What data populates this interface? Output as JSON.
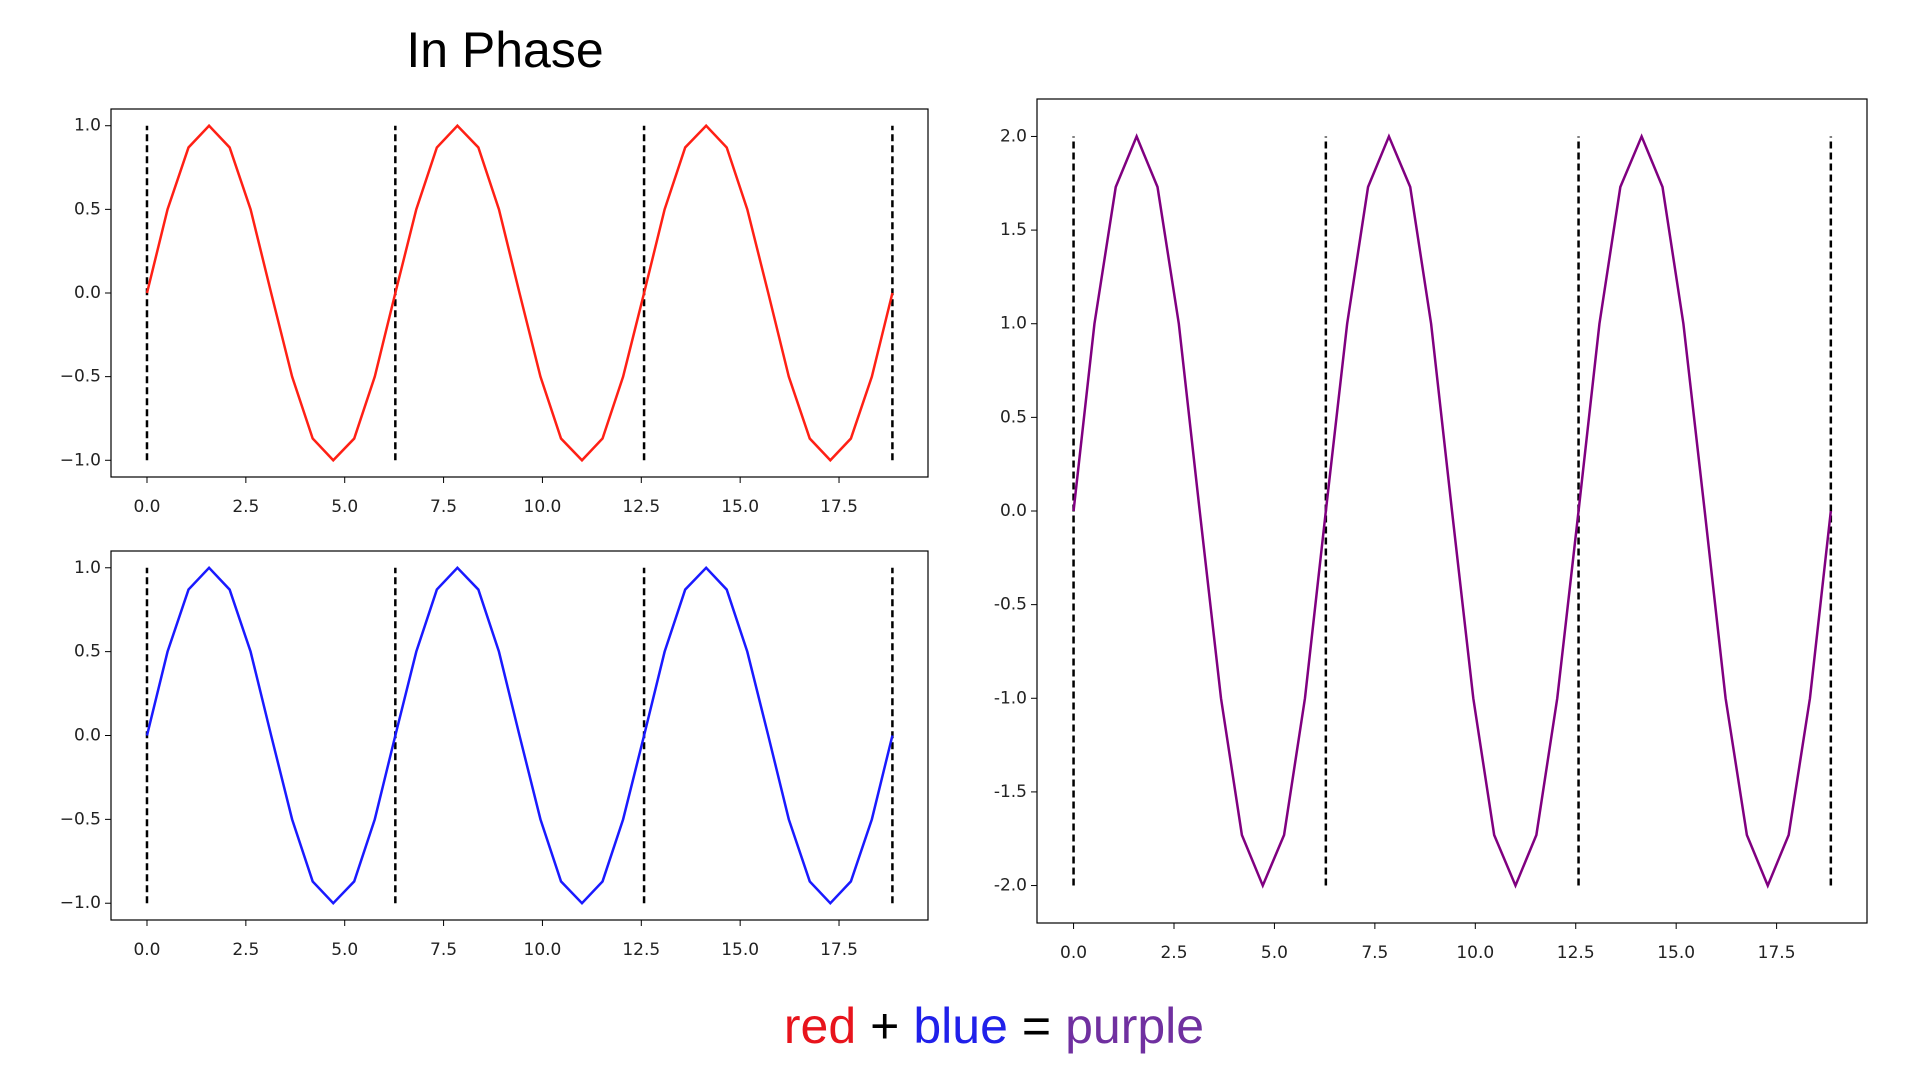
{
  "title": "In Phase",
  "caption": [
    {
      "text": "red",
      "color": "#e8141c"
    },
    {
      "text": "+",
      "color": "#000000"
    },
    {
      "text": "blue",
      "color": "#2020ea"
    },
    {
      "text": "=",
      "color": "#000000"
    },
    {
      "text": "purple",
      "color": "#7030a0"
    }
  ],
  "chart_data": [
    {
      "type": "line",
      "color": "#ff2015",
      "x": [
        0,
        0.52,
        1.05,
        1.57,
        2.09,
        2.62,
        3.14,
        3.67,
        4.19,
        4.71,
        5.24,
        5.76,
        6.28,
        6.81,
        7.33,
        7.85,
        8.38,
        8.9,
        9.42,
        9.95,
        10.47,
        11.0,
        11.52,
        12.04,
        12.57,
        13.09,
        13.61,
        14.14,
        14.66,
        15.18,
        15.71,
        16.23,
        16.76,
        17.28,
        17.8,
        18.33,
        18.85
      ],
      "values": [
        0,
        0.5,
        0.87,
        1,
        0.87,
        0.5,
        0,
        -0.5,
        -0.87,
        -1,
        -0.87,
        -0.5,
        0,
        0.5,
        0.87,
        1,
        0.87,
        0.5,
        0,
        -0.5,
        -0.87,
        -1,
        -0.87,
        -0.5,
        0,
        0.5,
        0.87,
        1,
        0.87,
        0.5,
        0,
        -0.5,
        -0.87,
        -1,
        -0.87,
        -0.5,
        0
      ],
      "vlines": {
        "x": [
          0,
          6.28,
          12.57,
          18.85
        ],
        "ymin": -1,
        "ymax": 1,
        "color": "#000000"
      },
      "xlim": [
        -0.91,
        19.75
      ],
      "ylim": [
        -1.1,
        1.1
      ],
      "xticks": [
        {
          "value": 0,
          "label": "0.0"
        },
        2.5,
        {
          "value": 5,
          "label": "5.0"
        },
        7.5,
        {
          "value": 10,
          "label": "10.0"
        },
        12.5,
        {
          "value": 15,
          "label": "15.0"
        },
        17.5
      ],
      "yticks": [
        {
          "value": -1,
          "label": "−1.0"
        },
        {
          "value": -0.5,
          "label": "−0.5"
        },
        {
          "value": 0,
          "label": "0.0"
        },
        0.5,
        {
          "value": 1,
          "label": "1.0"
        }
      ]
    },
    {
      "type": "line",
      "color": "#1a1aff",
      "x": [
        0,
        0.52,
        1.05,
        1.57,
        2.09,
        2.62,
        3.14,
        3.67,
        4.19,
        4.71,
        5.24,
        5.76,
        6.28,
        6.81,
        7.33,
        7.85,
        8.38,
        8.9,
        9.42,
        9.95,
        10.47,
        11.0,
        11.52,
        12.04,
        12.57,
        13.09,
        13.61,
        14.14,
        14.66,
        15.18,
        15.71,
        16.23,
        16.76,
        17.28,
        17.8,
        18.33,
        18.85
      ],
      "values": [
        0,
        0.5,
        0.87,
        1,
        0.87,
        0.5,
        0,
        -0.5,
        -0.87,
        -1,
        -0.87,
        -0.5,
        0,
        0.5,
        0.87,
        1,
        0.87,
        0.5,
        0,
        -0.5,
        -0.87,
        -1,
        -0.87,
        -0.5,
        0,
        0.5,
        0.87,
        1,
        0.87,
        0.5,
        0,
        -0.5,
        -0.87,
        -1,
        -0.87,
        -0.5,
        0
      ],
      "vlines": {
        "x": [
          0,
          6.28,
          12.57,
          18.85
        ],
        "ymin": -1,
        "ymax": 1,
        "color": "#000000"
      },
      "xlim": [
        -0.91,
        19.75
      ],
      "ylim": [
        -1.1,
        1.1
      ],
      "xticks": [
        {
          "value": 0,
          "label": "0.0"
        },
        2.5,
        {
          "value": 5,
          "label": "5.0"
        },
        7.5,
        {
          "value": 10,
          "label": "10.0"
        },
        12.5,
        {
          "value": 15,
          "label": "15.0"
        },
        17.5
      ],
      "yticks": [
        {
          "value": -1,
          "label": "−1.0"
        },
        {
          "value": -0.5,
          "label": "−0.5"
        },
        {
          "value": 0,
          "label": "0.0"
        },
        0.5,
        {
          "value": 1,
          "label": "1.0"
        }
      ]
    },
    {
      "type": "line",
      "color": "#800080",
      "x": [
        0,
        0.52,
        1.05,
        1.57,
        2.09,
        2.62,
        3.14,
        3.67,
        4.19,
        4.71,
        5.24,
        5.76,
        6.28,
        6.81,
        7.33,
        7.85,
        8.38,
        8.9,
        9.42,
        9.95,
        10.47,
        11.0,
        11.52,
        12.04,
        12.57,
        13.09,
        13.61,
        14.14,
        14.66,
        15.18,
        15.71,
        16.23,
        16.76,
        17.28,
        17.8,
        18.33,
        18.85
      ],
      "values": [
        0,
        1,
        1.73,
        2,
        1.73,
        1,
        0,
        -1,
        -1.73,
        -2,
        -1.73,
        -1,
        0,
        1,
        1.73,
        2,
        1.73,
        1,
        0,
        -1,
        -1.73,
        -2,
        -1.73,
        -1,
        0,
        1,
        1.73,
        2,
        1.73,
        1,
        0,
        -1,
        -1.73,
        -2,
        -1.73,
        -1,
        0
      ],
      "vlines": {
        "x": [
          0,
          6.28,
          12.57,
          18.85
        ],
        "ymin": -2,
        "ymax": 2,
        "color": "#000000"
      },
      "xlim": [
        -0.91,
        19.75
      ],
      "ylim": [
        -2.2,
        2.2
      ],
      "xticks": [
        {
          "value": 0,
          "label": "0.0"
        },
        2.5,
        {
          "value": 5,
          "label": "5.0"
        },
        7.5,
        {
          "value": 10,
          "label": "10.0"
        },
        12.5,
        {
          "value": 15,
          "label": "15.0"
        },
        17.5
      ],
      "yticks": [
        {
          "value": -2,
          "label": "-2.0"
        },
        -1.5,
        {
          "value": -1,
          "label": "-1.0"
        },
        -0.5,
        {
          "value": 0,
          "label": "0.0"
        },
        0.5,
        {
          "value": 1,
          "label": "1.0"
        },
        1.5,
        {
          "value": 2,
          "label": "2.0"
        }
      ]
    }
  ]
}
